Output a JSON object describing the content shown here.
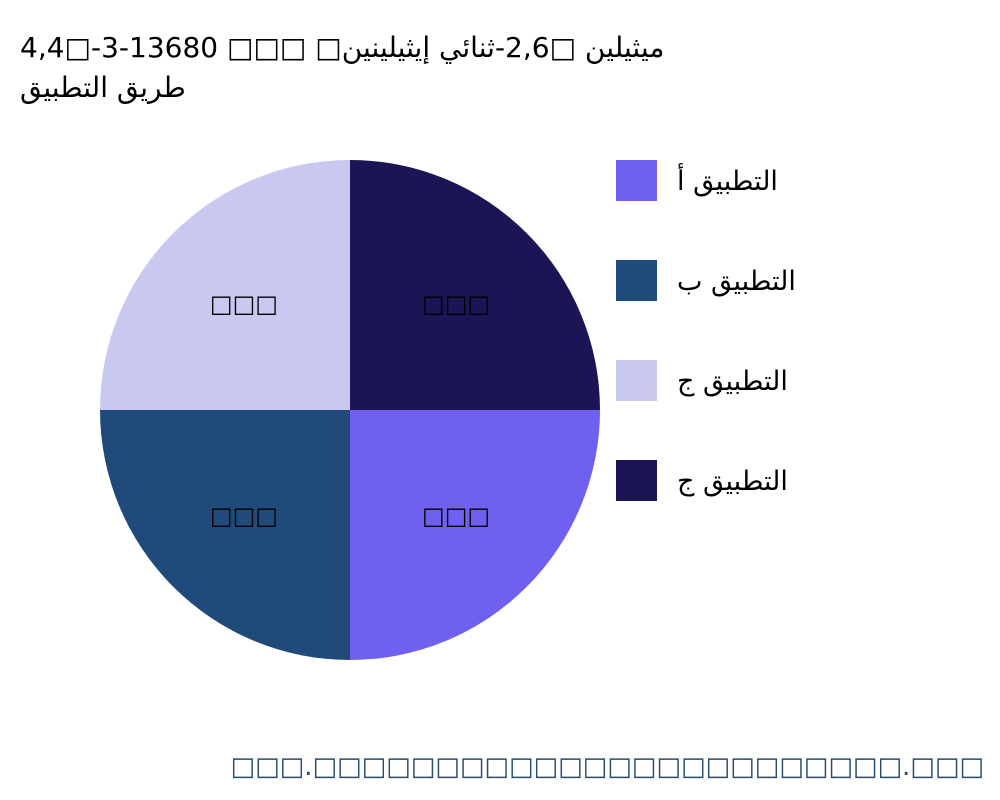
{
  "chart_data": {
    "type": "pie",
    "title_lines": [
      "4,4□-ميثيلين □2,6-ثنائي إيثيلينين□ □□□ 13680-3",
      "طريق التطبيق"
    ],
    "categories": [
      "التطبيق أ",
      "التطبيق ب",
      "التطبيق ج",
      "التطبيق ج"
    ],
    "values": [
      25,
      25,
      25,
      25
    ],
    "slice_labels": [
      "□□□",
      "□□□",
      "□□□",
      "□□□"
    ],
    "colors": [
      "#7060f0",
      "#1f4a7a",
      "#c8c8f0",
      "#1c1555"
    ],
    "start_angle": "3 o'clock",
    "direction": "clockwise",
    "legend_placement": "right"
  },
  "footer": "□□□.□□□□□□□□□□□□□□□□□□□□□□□□.□□□"
}
